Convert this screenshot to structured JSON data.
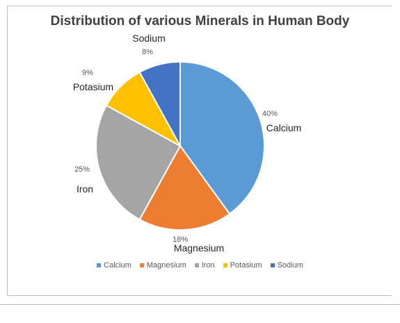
{
  "chart_data": {
    "type": "pie",
    "title": "Distribution of various Minerals in Human Body",
    "categories": [
      "Calcium",
      "Magnesium",
      "Iron",
      "Potasium",
      "Sodium"
    ],
    "values": [
      40,
      18,
      25,
      9,
      8
    ],
    "value_labels": [
      "40%",
      "18%",
      "25%",
      "9%",
      "8%"
    ],
    "colors": [
      "#5b9bd5",
      "#ed7d31",
      "#a5a5a5",
      "#ffc000",
      "#4472c4"
    ],
    "start_angle_deg": 0,
    "direction": "clockwise",
    "legend_position": "bottom"
  }
}
